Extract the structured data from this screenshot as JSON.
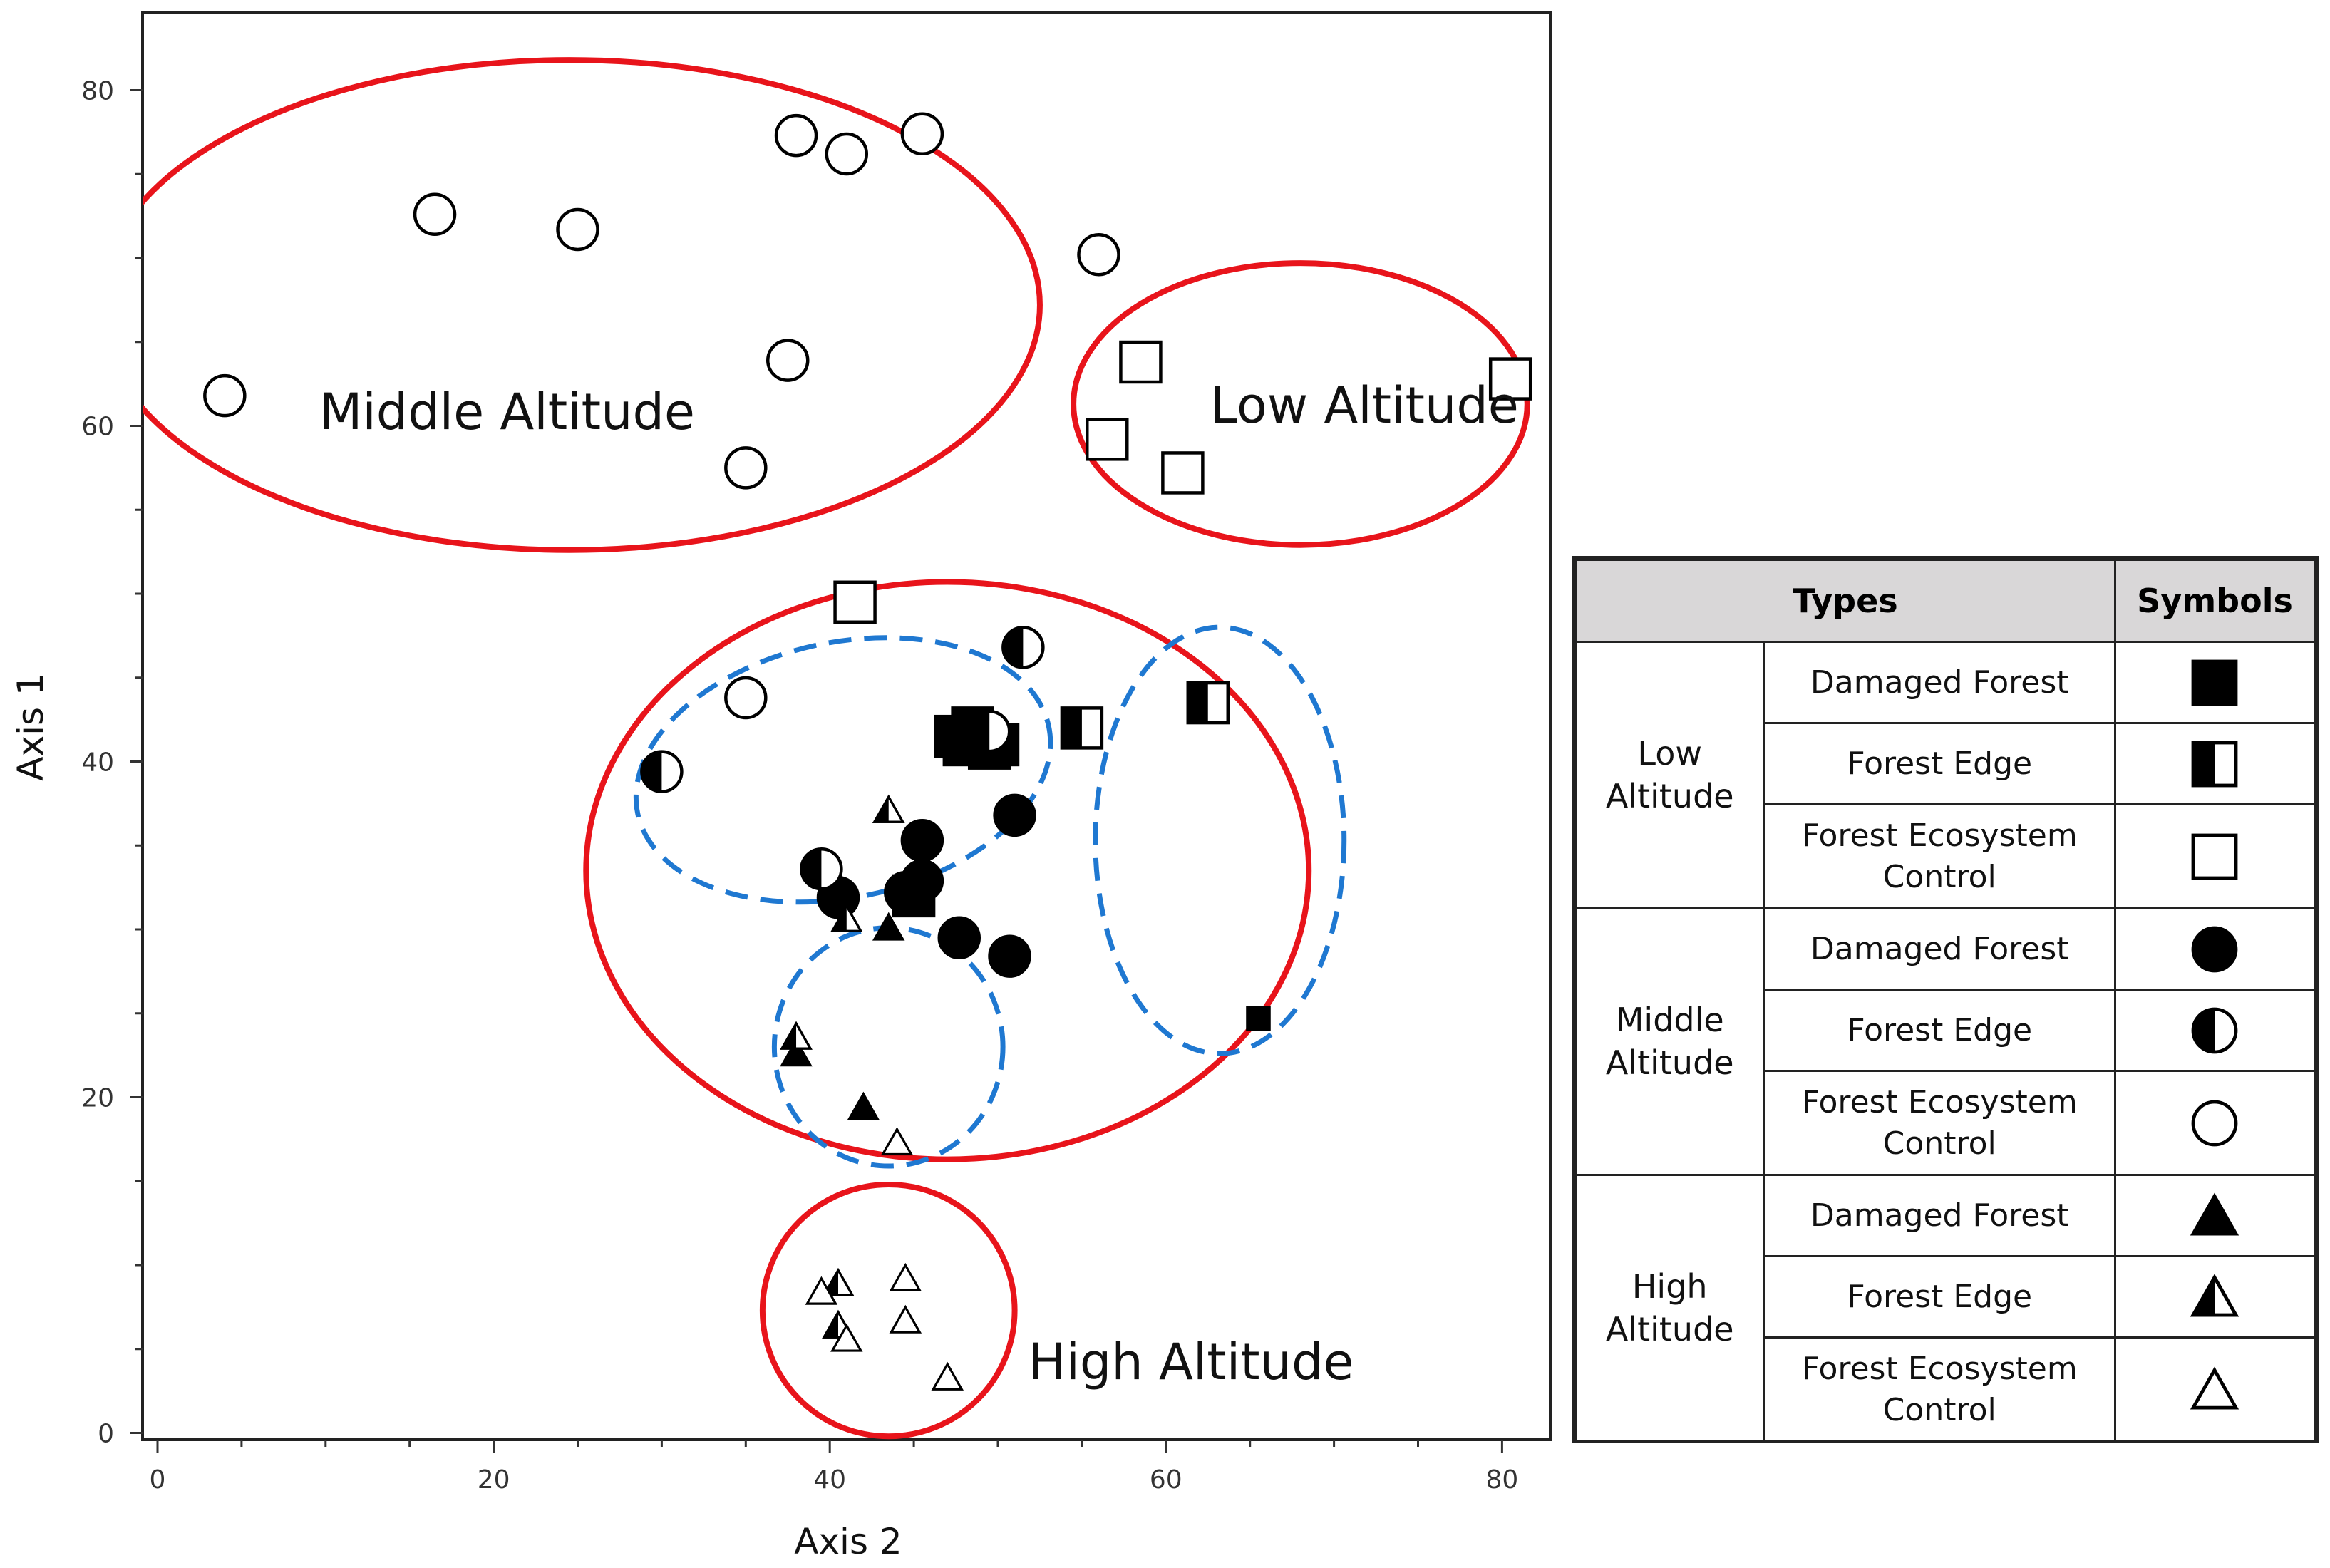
{
  "chart_data": {
    "type": "scatter",
    "xlabel": "Axis 2",
    "ylabel": "Axis 1",
    "xlim": [
      0,
      82
    ],
    "ylim": [
      0,
      84
    ],
    "xticks": [
      0,
      20,
      40,
      60,
      80
    ],
    "yticks": [
      0,
      20,
      40,
      60,
      80
    ],
    "grid": false,
    "series": [
      {
        "name": "Low Altitude - Damaged Forest",
        "shape": "square",
        "fill": "full",
        "points": [
          [
            47.5,
            41.5
          ],
          [
            48.5,
            42
          ],
          [
            49,
            41.5
          ],
          [
            50,
            41
          ],
          [
            48,
            41
          ],
          [
            49.5,
            40.8
          ],
          [
            45,
            32
          ],
          [
            65.5,
            24.7
          ]
        ]
      },
      {
        "name": "Low Altitude - Forest Edge",
        "shape": "square",
        "fill": "half",
        "points": [
          [
            55,
            42
          ],
          [
            62.5,
            43.5
          ]
        ]
      },
      {
        "name": "Low Altitude - Forest Ecosystem Control",
        "shape": "square",
        "fill": "empty",
        "points": [
          [
            41.5,
            49.5
          ],
          [
            58.5,
            63.8
          ],
          [
            56.5,
            59.2
          ],
          [
            61,
            57.2
          ],
          [
            80.5,
            62.8
          ]
        ]
      },
      {
        "name": "Middle Altitude - Damaged Forest",
        "shape": "circle",
        "fill": "full",
        "points": [
          [
            45.5,
            35.3
          ],
          [
            51,
            36.8
          ],
          [
            40.5,
            31.9
          ],
          [
            44.5,
            32.2
          ],
          [
            45.5,
            32.9
          ],
          [
            47.7,
            29.5
          ],
          [
            50.7,
            28.4
          ]
        ]
      },
      {
        "name": "Middle Altitude - Forest Edge",
        "shape": "circle",
        "fill": "half",
        "points": [
          [
            51.5,
            46.8
          ],
          [
            30,
            39.4
          ],
          [
            39.5,
            33.6
          ],
          [
            49.5,
            41.8
          ]
        ]
      },
      {
        "name": "Middle Altitude - Forest Ecosystem Control",
        "shape": "circle",
        "fill": "empty",
        "points": [
          [
            4,
            61.8
          ],
          [
            16.5,
            72.6
          ],
          [
            25,
            71.7
          ],
          [
            38,
            77.3
          ],
          [
            41,
            76.2
          ],
          [
            45.5,
            77.4
          ],
          [
            56,
            70.2
          ],
          [
            37.5,
            63.9
          ],
          [
            35,
            57.5
          ],
          [
            35,
            43.8
          ]
        ]
      },
      {
        "name": "High Altitude - Damaged Forest",
        "shape": "triangle",
        "fill": "full",
        "points": [
          [
            43.5,
            30
          ],
          [
            38,
            22.5
          ],
          [
            42,
            19.3
          ]
        ]
      },
      {
        "name": "High Altitude - Forest Edge",
        "shape": "triangle",
        "fill": "half",
        "points": [
          [
            43.5,
            37
          ],
          [
            41,
            30.5
          ],
          [
            38,
            23.5
          ],
          [
            40.5,
            8.8
          ],
          [
            40.5,
            6.3
          ]
        ]
      },
      {
        "name": "High Altitude - Forest Ecosystem Control",
        "shape": "triangle",
        "fill": "empty",
        "points": [
          [
            44,
            17.2
          ],
          [
            44.5,
            9.1
          ],
          [
            39.5,
            8.3
          ],
          [
            44.5,
            6.6
          ],
          [
            41,
            5.5
          ],
          [
            47,
            3.2
          ]
        ]
      }
    ],
    "annotations": [
      {
        "text": "Middle Altitude",
        "x": 20.8,
        "y": 59.8
      },
      {
        "text": "Low Altitude",
        "x": 71.8,
        "y": 60.2
      },
      {
        "text": "High Altitude",
        "x": 61.5,
        "y": 3.2
      }
    ],
    "ellipses": [
      {
        "style": "red-solid",
        "cx": 24.5,
        "cy": 67.2,
        "rx": 28,
        "ry": 14.6
      },
      {
        "style": "red-solid",
        "cx": 68,
        "cy": 61.3,
        "rx": 13.5,
        "ry": 8.4
      },
      {
        "style": "red-solid",
        "cx": 47,
        "cy": 33.5,
        "rx": 21.5,
        "ry": 17.2
      },
      {
        "style": "red-solid",
        "cx": 43.5,
        "cy": 7.3,
        "rx": 7.5,
        "ry": 7.5
      },
      {
        "style": "blue-dashed",
        "cx": 40.8,
        "cy": 39.5,
        "rx": 12.5,
        "ry": 7.6,
        "rotate": 12
      },
      {
        "style": "blue-dashed",
        "cx": 63.2,
        "cy": 35.3,
        "rx": 7.4,
        "ry": 12.7,
        "rotate": 0
      },
      {
        "style": "blue-dashed",
        "cx": 43.5,
        "cy": 23,
        "rx": 6.8,
        "ry": 7.1,
        "rotate": 0
      }
    ]
  },
  "legend": {
    "header_types": "Types",
    "header_symbols": "Symbols",
    "groups": [
      {
        "name_line1": "Low",
        "name_line2": "Altitude",
        "shape": "square",
        "rows": [
          {
            "l1": "Damaged Forest",
            "l2": "",
            "fill": "full"
          },
          {
            "l1": "Forest Edge",
            "l2": "",
            "fill": "half"
          },
          {
            "l1": "Forest Ecosystem",
            "l2": "Control",
            "fill": "empty"
          }
        ]
      },
      {
        "name_line1": "Middle",
        "name_line2": "Altitude",
        "shape": "circle",
        "rows": [
          {
            "l1": "Damaged Forest",
            "l2": "",
            "fill": "full"
          },
          {
            "l1": "Forest Edge",
            "l2": "",
            "fill": "half"
          },
          {
            "l1": "Forest Ecosystem",
            "l2": "Control",
            "fill": "empty"
          }
        ]
      },
      {
        "name_line1": "High",
        "name_line2": "Altitude",
        "shape": "triangle",
        "rows": [
          {
            "l1": "Damaged Forest",
            "l2": "",
            "fill": "full"
          },
          {
            "l1": "Forest Edge",
            "l2": "",
            "fill": "half"
          },
          {
            "l1": "Forest Ecosystem",
            "l2": "Control",
            "fill": "empty"
          }
        ]
      }
    ]
  },
  "colors": {
    "cluster": "#e8141b",
    "subcluster": "#1f78d1",
    "marker": "#000000",
    "header_bg": "#d9d7d8"
  }
}
